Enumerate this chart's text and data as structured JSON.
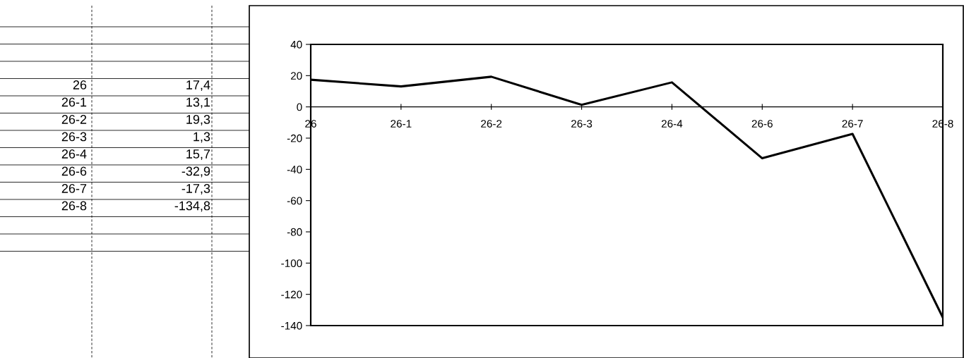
{
  "chart_data": [
    {
      "type": "other",
      "annotations": [
        "26",
        "17,4",
        "26-1",
        "13,1",
        "26-2",
        "19,3",
        "26-3",
        "1,3",
        "26-4",
        "15,7",
        "26-6",
        "-32,9",
        "26-7",
        "-17,3",
        "26-8",
        "-134,8"
      ]
    },
    {
      "type": "line",
      "categories": [
        "26",
        "26-1",
        "26-2",
        "26-3",
        "26-4",
        "26-6",
        "26-7",
        "26-8"
      ],
      "series": [
        {
          "color": "#000000",
          "values": [
            17.4,
            13.1,
            19.3,
            1.3,
            15.7,
            -32.9,
            -17.3,
            -134.8
          ]
        }
      ],
      "ylim": [
        -140,
        40
      ],
      "yticks": [
        -140,
        -120,
        -100,
        -80,
        -60,
        -40,
        -20,
        0,
        20,
        40
      ],
      "grid": false,
      "legend": false,
      "marker": "none",
      "line_style": "solid"
    }
  ]
}
